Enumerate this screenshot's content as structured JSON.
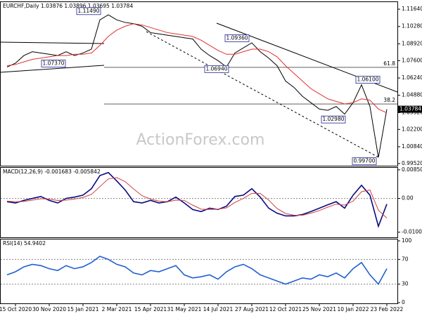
{
  "chart_data": [
    {
      "type": "line",
      "title": "EURCHF,Daily 1.03876 1.03896 1.03695 1.03784",
      "ylim": [
        0.9935,
        1.1214
      ],
      "yticks": [
        {
          "value": 1.1164,
          "label": "1.11640"
        },
        {
          "value": 1.1028,
          "label": "1.10280"
        },
        {
          "value": 1.0892,
          "label": "1.08920"
        },
        {
          "value": 1.076,
          "label": "1.07600"
        },
        {
          "value": 1.0624,
          "label": "1.06240"
        },
        {
          "value": 1.0488,
          "label": "1.04880"
        },
        {
          "value": 1.0352,
          "label": "1.03520"
        },
        {
          "value": 1.022,
          "label": "1.02200"
        },
        {
          "value": 1.0084,
          "label": "1.00840"
        },
        {
          "value": 0.9952,
          "label": "0.99520"
        }
      ],
      "series": [
        {
          "color": "#000000",
          "values": [
            1.071,
            1.074,
            1.08,
            1.083,
            1.082,
            1.081,
            1.08,
            1.083,
            1.08,
            1.082,
            1.085,
            1.108,
            1.112,
            1.108,
            1.106,
            1.105,
            1.103,
            1.098,
            1.097,
            1.096,
            1.095,
            1.094,
            1.093,
            1.085,
            1.08,
            1.076,
            1.071,
            1.082,
            1.086,
            1.09,
            1.083,
            1.078,
            1.072,
            1.06,
            1.055,
            1.048,
            1.043,
            1.038,
            1.037,
            1.04,
            1.034,
            1.043,
            1.057,
            1.04,
            1.0,
            1.03784
          ]
        },
        {
          "color": "#e03030",
          "values": [
            1.072,
            1.073,
            1.075,
            1.077,
            1.078,
            1.079,
            1.08,
            1.08,
            1.081,
            1.081,
            1.082,
            1.088,
            1.095,
            1.1,
            1.103,
            1.105,
            1.104,
            1.102,
            1.1,
            1.098,
            1.097,
            1.096,
            1.095,
            1.092,
            1.088,
            1.084,
            1.081,
            1.081,
            1.083,
            1.085,
            1.085,
            1.083,
            1.079,
            1.072,
            1.066,
            1.06,
            1.054,
            1.05,
            1.046,
            1.044,
            1.042,
            1.043,
            1.046,
            1.045,
            1.038,
            1.035
          ]
        }
      ],
      "annotations": [
        {
          "value": 1.1149,
          "label": "1.11490"
        },
        {
          "value": 1.0936,
          "label": "1.09360"
        },
        {
          "value": 1.0737,
          "label": "1.07370"
        },
        {
          "value": 1.0694,
          "label": "1.06940"
        },
        {
          "value": 1.061,
          "label": "1.06100"
        },
        {
          "value": 1.0298,
          "label": "1.02980"
        },
        {
          "value": 0.997,
          "label": "0.99700"
        }
      ],
      "fib_levels": [
        {
          "ratio": 61.8,
          "price": 1.0707
        },
        {
          "ratio": 38.2,
          "price": 1.042
        }
      ],
      "last_price": {
        "value": 1.03784,
        "label": "1.03784"
      },
      "watermark": "ActionForex.com"
    },
    {
      "type": "line",
      "title": "MACD(12,26,9) -0.001683 -0.005842",
      "ylim": [
        -0.01158,
        0.0091
      ],
      "yticks": [
        0.008507,
        {
          "value": 0,
          "label": "0.00"
        },
        -0.010034
      ],
      "zero_line": true,
      "series": [
        {
          "color": "#0a0a80",
          "values": [
            -0.00097,
            -0.00135,
            -0.00058,
            0,
            0.00058,
            -0.00058,
            -0.00135,
            0,
            0.00039,
            0.00097,
            0.0029,
            0.0068,
            0.0077,
            0.0052,
            0.0025,
            -0.00097,
            -0.00135,
            -0.00058,
            -0.00135,
            -0.00097,
            0.00039,
            -0.00135,
            -0.0033,
            -0.0039,
            -0.0029,
            -0.0033,
            -0.0023,
            0.00058,
            0.00097,
            0.0029,
            0.00039,
            -0.0029,
            -0.0044,
            -0.0052,
            -0.0052,
            -0.0048,
            -0.0039,
            -0.0029,
            -0.0019,
            -0.00097,
            -0.0029,
            0.00097,
            0.0039,
            0.00097,
            -0.0083,
            -0.001683
          ]
        },
        {
          "color": "#d04040",
          "values": [
            -0.0008,
            -0.001,
            -0.0009,
            -0.0005,
            -0.0001,
            -0.0002,
            -0.0006,
            -0.0005,
            -0.0002,
            0.0003,
            0.0012,
            0.0035,
            0.0058,
            0.0062,
            0.005,
            0.0028,
            0.0008,
            -0.0002,
            -0.0008,
            -0.001,
            -0.0005,
            -0.0006,
            -0.002,
            -0.0032,
            -0.0033,
            -0.0032,
            -0.0028,
            -0.0012,
            0,
            0.0015,
            0.0015,
            -0.0005,
            -0.003,
            -0.0045,
            -0.005,
            -0.005,
            -0.0044,
            -0.0036,
            -0.0026,
            -0.0017,
            -0.002,
            -0.0008,
            0.002,
            0.0025,
            -0.0035,
            -0.005842
          ]
        }
      ]
    },
    {
      "type": "line",
      "title": "RSI(14) 54.9402",
      "ylim": [
        0,
        100
      ],
      "yticks": [
        100,
        70,
        30,
        0
      ],
      "grid": true,
      "categories": [
        null,
        "15 Oct 2020",
        null,
        null,
        null,
        "30 Nov 2020",
        null,
        null,
        null,
        "15 Jan 2021",
        null,
        null,
        null,
        "2 Mar 2021",
        null,
        null,
        null,
        "15 Apr 2021",
        null,
        null,
        null,
        "31 May 2021",
        null,
        null,
        null,
        "14 Jul 2021",
        null,
        null,
        null,
        "27 Aug 2021",
        null,
        null,
        null,
        "12 Oct 2021",
        null,
        null,
        null,
        "25 Nov 2021",
        null,
        null,
        null,
        "10 Jan 2022",
        null,
        null,
        null,
        "23 Feb 2022"
      ],
      "series": [
        {
          "color": "#2060d0",
          "values": [
            45,
            50,
            58,
            62,
            60,
            55,
            52,
            60,
            55,
            58,
            65,
            75,
            70,
            62,
            58,
            48,
            45,
            52,
            50,
            55,
            60,
            45,
            40,
            42,
            45,
            38,
            50,
            58,
            62,
            55,
            45,
            40,
            35,
            30,
            35,
            40,
            38,
            45,
            42,
            48,
            40,
            55,
            65,
            45,
            30,
            54.9402
          ]
        }
      ]
    }
  ]
}
